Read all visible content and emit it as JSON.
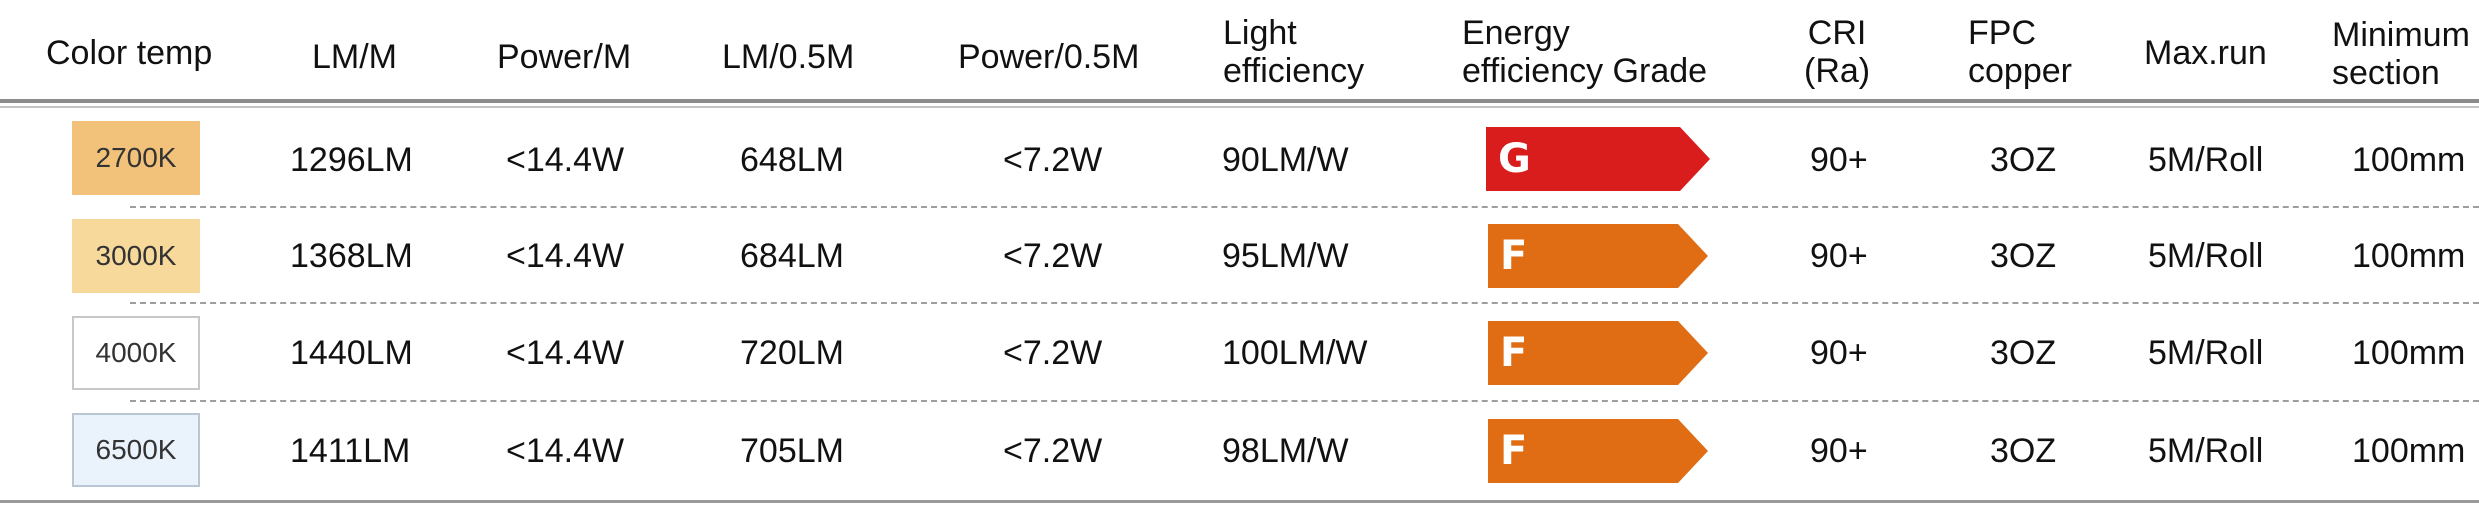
{
  "headers": {
    "color_temp": [
      "Color temp"
    ],
    "lm_m": [
      "LM/M"
    ],
    "power_m": [
      "Power/M"
    ],
    "lm_half": [
      "LM/0.5M"
    ],
    "power_half": [
      "Power/0.5M"
    ],
    "light_eff": [
      "Light",
      "efficiency"
    ],
    "energy_grade": [
      "Energy",
      "efficiency Grade"
    ],
    "cri": [
      "CRI",
      "(Ra)"
    ],
    "fpc": [
      "FPC",
      "copper"
    ],
    "max_run": [
      "Max.run"
    ],
    "min_section": [
      "Minimum",
      "section"
    ]
  },
  "rows": [
    {
      "temp": "2700K",
      "swatch": "#f2c27a",
      "swatch_border": "#f2c27a",
      "lm_m": "1296LM",
      "power_m": "<14.4W",
      "lm_half": "648LM",
      "power_half": "<7.2W",
      "efficiency": "90LM/W",
      "grade": "G",
      "grade_color": "#d91c1c",
      "cri": "90+",
      "fpc": "3OZ",
      "max_run": "5M/Roll",
      "min_section": "100mm"
    },
    {
      "temp": "3000K",
      "swatch": "#f7d99c",
      "swatch_border": "#f7d99c",
      "lm_m": "1368LM",
      "power_m": "<14.4W",
      "lm_half": "684LM",
      "power_half": "<7.2W",
      "efficiency": "95LM/W",
      "grade": "F",
      "grade_color": "#e06d14",
      "cri": "90+",
      "fpc": "3OZ",
      "max_run": "5M/Roll",
      "min_section": "100mm"
    },
    {
      "temp": "4000K",
      "swatch": "#ffffff",
      "swatch_border": "#c8c8c8",
      "lm_m": "1440LM",
      "power_m": "<14.4W",
      "lm_half": "720LM",
      "power_half": "<7.2W",
      "efficiency": "100LM/W",
      "grade": "F",
      "grade_color": "#e06d14",
      "cri": "90+",
      "fpc": "3OZ",
      "max_run": "5M/Roll",
      "min_section": "100mm"
    },
    {
      "temp": "6500K",
      "swatch": "#eaf3fc",
      "swatch_border": "#b9c6d3",
      "lm_m": "1411LM",
      "power_m": "<14.4W",
      "lm_half": "705LM",
      "power_half": "<7.2W",
      "efficiency": "98LM/W",
      "grade": "F",
      "grade_color": "#e06d14",
      "cri": "90+",
      "fpc": "3OZ",
      "max_run": "5M/Roll",
      "min_section": "100mm"
    }
  ]
}
